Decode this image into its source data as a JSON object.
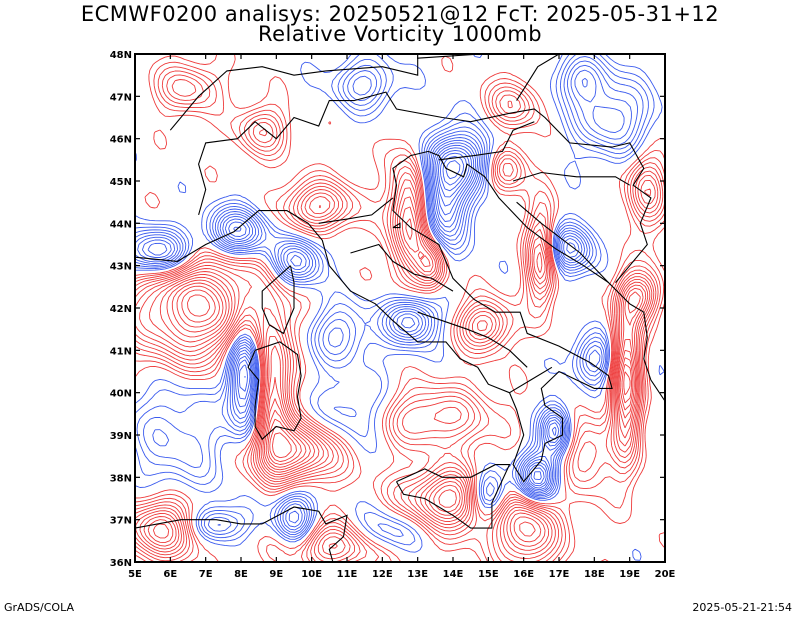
{
  "header": {
    "title": "ECMWF0200 analisys: 20250521@12 FcT: 2025-05-31+12",
    "subtitle": "Relative Vorticity 1000mb"
  },
  "map": {
    "projection": "lat-lon",
    "lon_range": [
      5,
      20
    ],
    "lat_range": [
      36,
      48
    ],
    "x_ticks": [
      "5E",
      "6E",
      "7E",
      "8E",
      "9E",
      "10E",
      "11E",
      "12E",
      "13E",
      "14E",
      "15E",
      "16E",
      "17E",
      "18E",
      "19E",
      "20E"
    ],
    "y_ticks": [
      "36N",
      "37N",
      "38N",
      "39N",
      "40N",
      "41N",
      "42N",
      "43N",
      "44N",
      "45N",
      "46N",
      "47N",
      "48N"
    ],
    "field": "relative vorticity",
    "level": "1000mb",
    "colors": {
      "positive": "#ee3b3b",
      "negative": "#3b5bee",
      "coastline": "#000000",
      "frame": "#000000"
    }
  },
  "footer": {
    "left": "GrADS/COLA",
    "right": "2025-05-21-21:54"
  }
}
